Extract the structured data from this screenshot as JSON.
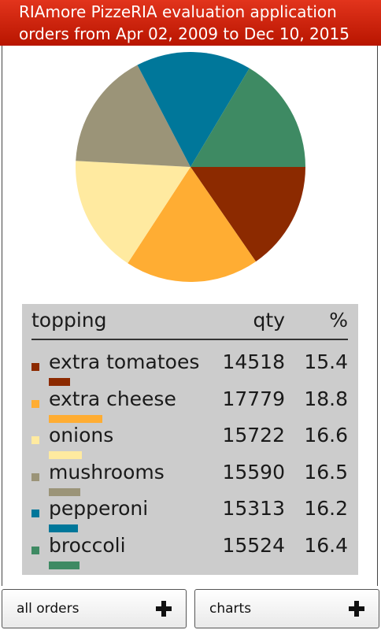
{
  "header": {
    "title": "RIAmore PizzeRIA evaluation application",
    "subtitle": "orders from Apr 02, 2009 to Dec 10, 2015"
  },
  "chart_data": {
    "type": "pie",
    "columns": [
      "topping",
      "qty",
      "%"
    ],
    "categories": [
      "extra tomatoes",
      "extra cheese",
      "onions",
      "mushrooms",
      "pepperoni",
      "broccoli"
    ],
    "values": [
      14518,
      17779,
      15722,
      15590,
      15313,
      15524
    ],
    "percents": [
      "15.4",
      "18.8",
      "16.6",
      "16.5",
      "16.2",
      "16.4"
    ],
    "colors": [
      "#8c2a00",
      "#ffad33",
      "#ffeaa0",
      "#9b9478",
      "#00779a",
      "#3e8a63"
    ]
  },
  "buttons": {
    "all_orders": "all orders",
    "charts": "charts"
  }
}
